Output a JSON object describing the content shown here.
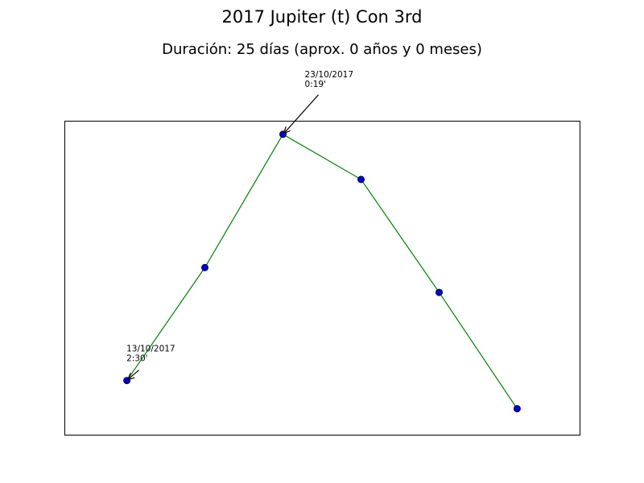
{
  "chart_data": {
    "type": "line",
    "title": "2017 Jupiter (t) Con 3rd",
    "subtitle": "Duración: 25 días (aprox. 0 años y 0 meses)",
    "xlabel": "",
    "ylabel": "",
    "grid": false,
    "axes_ticks": false,
    "x": [
      "2017-10-13",
      "2017-10-18",
      "2017-10-23",
      "2017-10-28",
      "2017-11-02",
      "2017-11-07"
    ],
    "xlim": [
      "2017-10-09",
      "2017-11-11"
    ],
    "series": [
      {
        "line_color": "#008000",
        "marker_face": "#0000cc",
        "marker_edge": "#000044",
        "values": [
          2.5,
          1.5,
          0.32,
          0.72,
          1.72,
          2.75
        ]
      }
    ],
    "ylim": [
      2.98,
      0.2
    ],
    "annotations": [
      {
        "index": 0,
        "lines": [
          "13/10/2017",
          "2:30'"
        ]
      },
      {
        "index": 2,
        "lines": [
          "23/10/2017",
          "0:19'"
        ]
      }
    ]
  }
}
